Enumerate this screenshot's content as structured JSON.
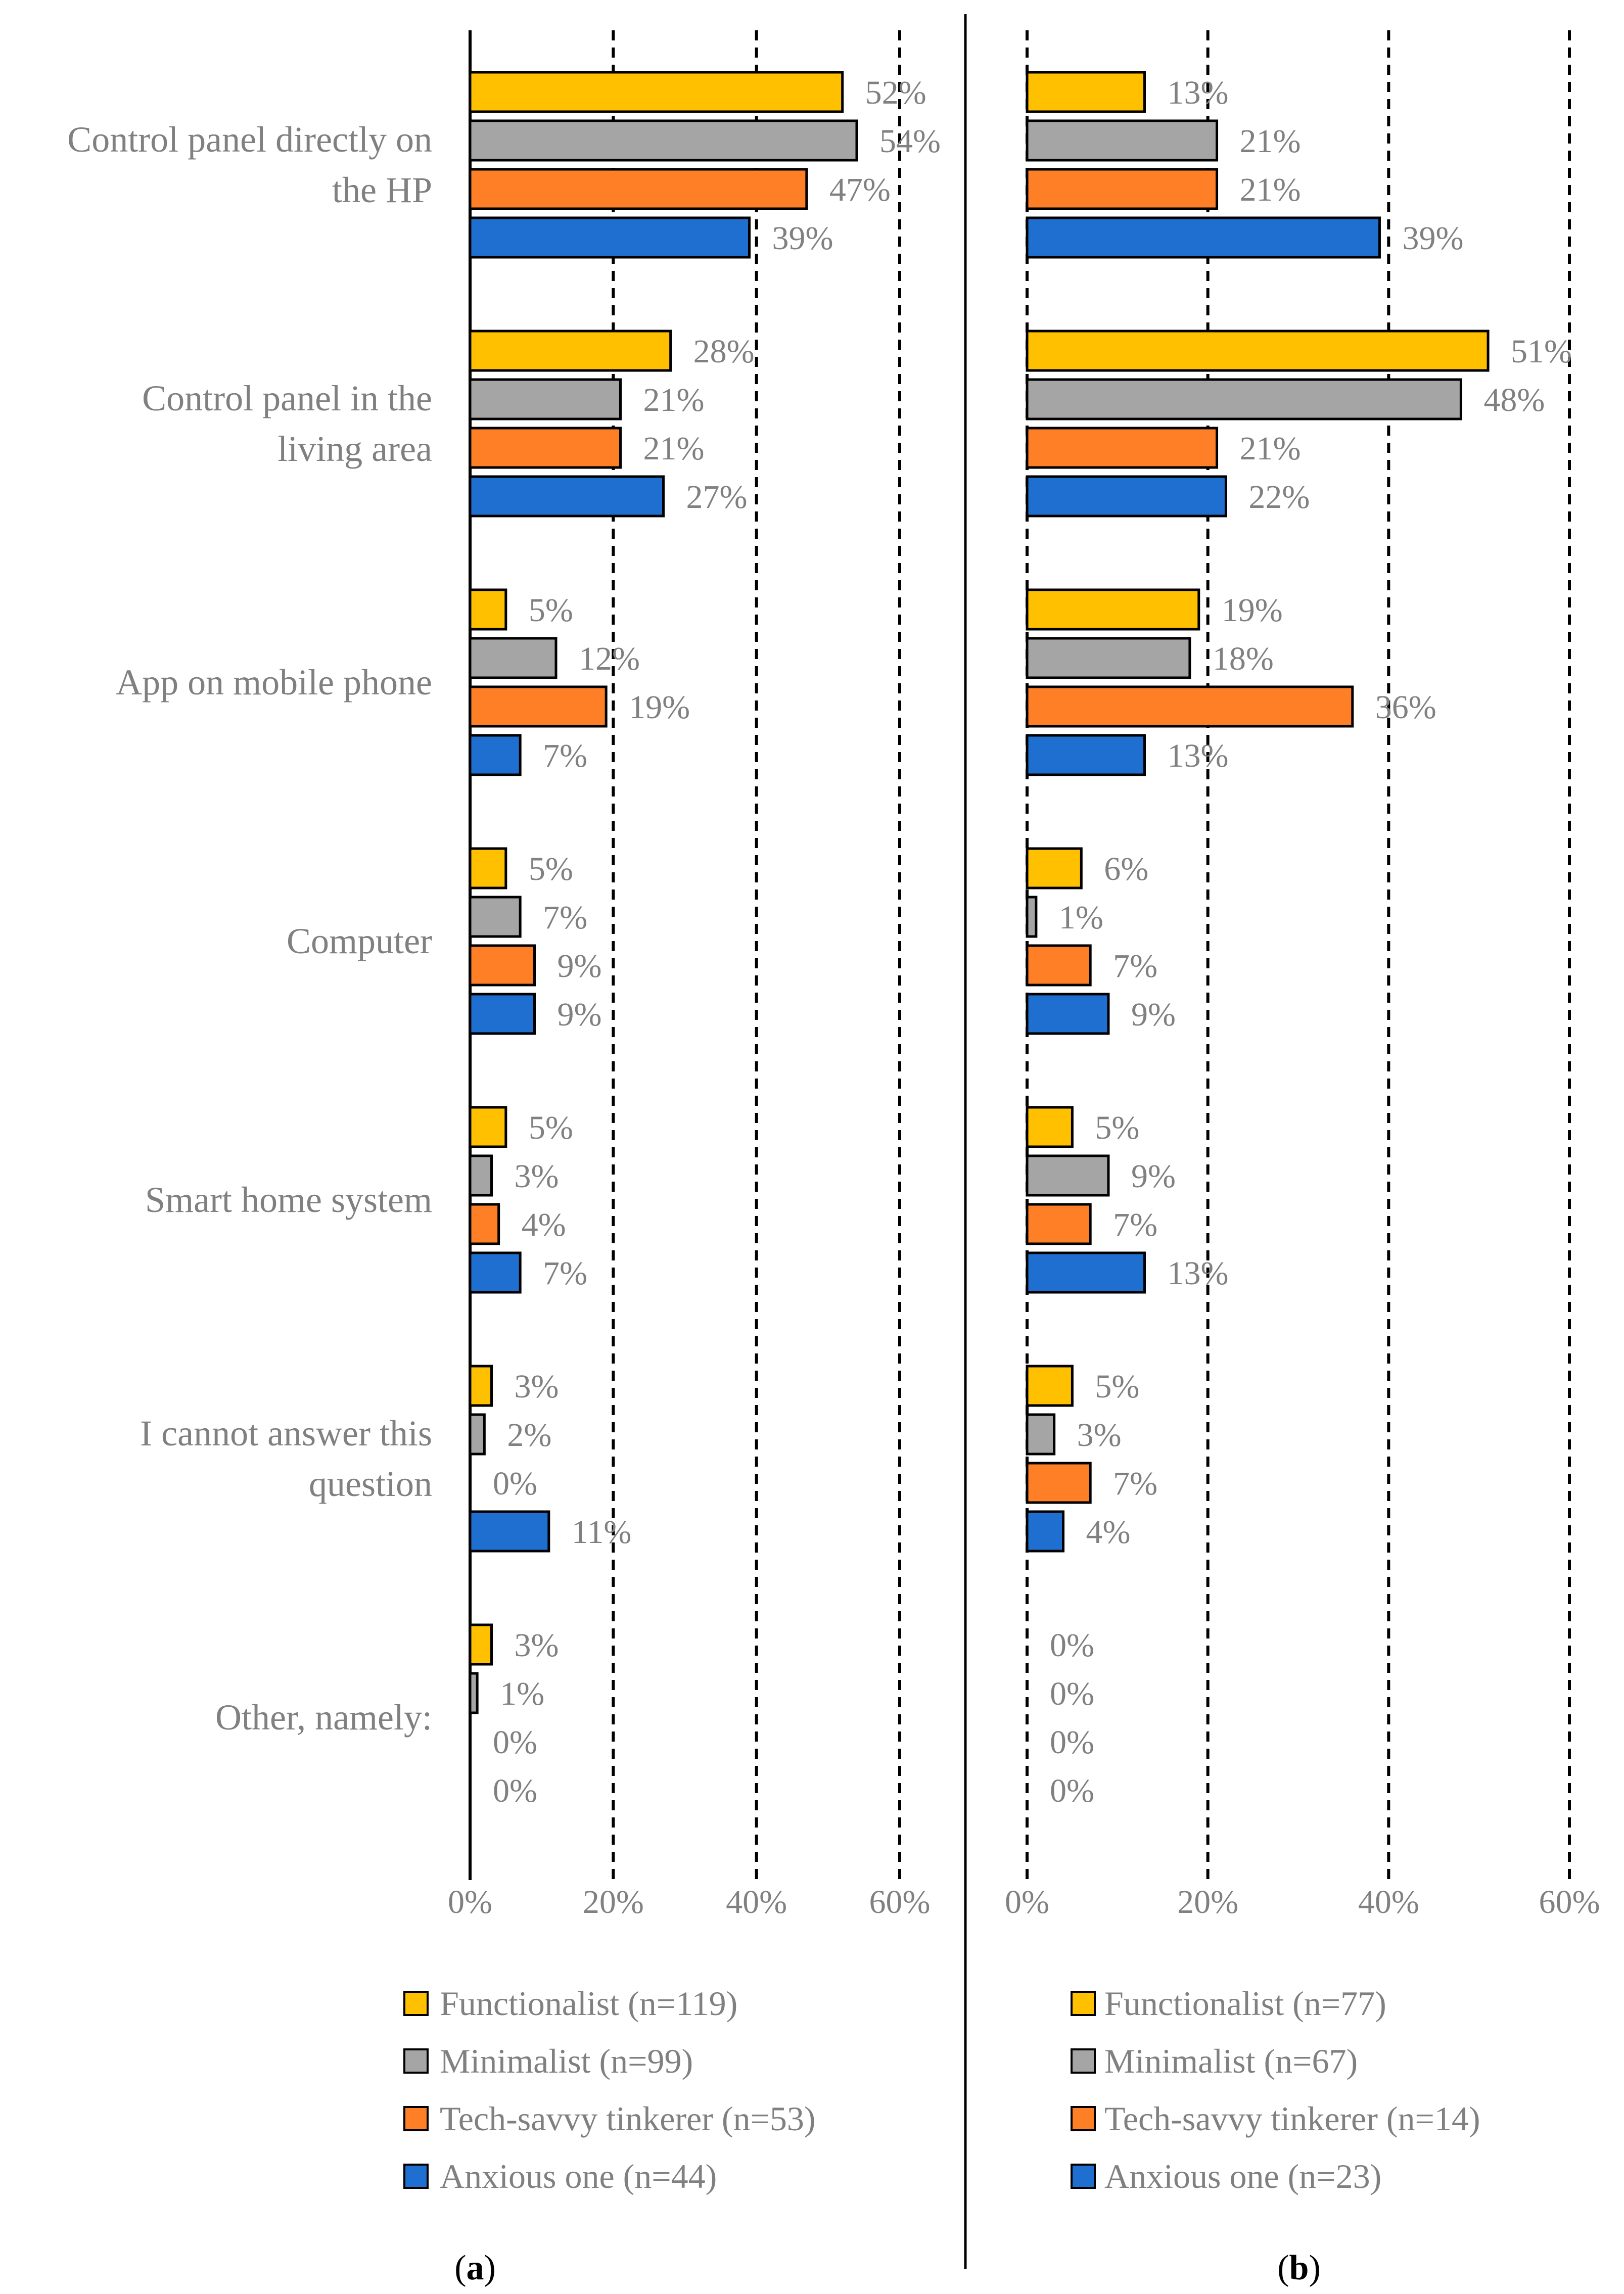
{
  "chart_data": [
    {
      "type": "bar",
      "orientation": "horizontal",
      "panel_label": "a",
      "categories": [
        "Control panel directly on the HP",
        "Control panel in the living area",
        "App on mobile phone",
        "Computer",
        "Smart home system",
        "I cannot answer this question",
        "Other, namely:"
      ],
      "category_lines": [
        [
          "Control panel directly on",
          "the HP"
        ],
        [
          "Control panel in the",
          "living area"
        ],
        [
          "App on mobile phone"
        ],
        [
          "Computer"
        ],
        [
          "Smart home system"
        ],
        [
          "I cannot answer this",
          "question"
        ],
        [
          "Other, namely:"
        ]
      ],
      "series": [
        {
          "name": "Functionalist (n=119)",
          "color": "#FFC000",
          "values": [
            52,
            28,
            5,
            5,
            5,
            3,
            3
          ],
          "labels": [
            "52%",
            "28%",
            "5%",
            "5%",
            "5%",
            "3%",
            "3%"
          ]
        },
        {
          "name": "Minimalist (n=99)",
          "color": "#A5A5A5",
          "values": [
            54,
            21,
            12,
            7,
            3,
            2,
            1
          ],
          "labels": [
            "54%",
            "21%",
            "12%",
            "7%",
            "3%",
            "2%",
            "1%"
          ]
        },
        {
          "name": "Tech-savvy tinkerer (n=53)",
          "color": "#FF7F27",
          "values": [
            47,
            21,
            19,
            9,
            4,
            0,
            0
          ],
          "labels": [
            "47%",
            "21%",
            "19%",
            "9%",
            "4%",
            "0%",
            "0%"
          ]
        },
        {
          "name": "Anxious one (n=44)",
          "color": "#1F6FD0",
          "values": [
            39,
            27,
            7,
            9,
            7,
            11,
            0
          ],
          "labels": [
            "39%",
            "27%",
            "7%",
            "9%",
            "7%",
            "11%",
            "0%"
          ]
        }
      ],
      "xlim": [
        0,
        60
      ],
      "xticks": [
        "0%",
        "20%",
        "40%",
        "60%"
      ],
      "grid": "dashed vertical at 20%, 40%, 60%",
      "legend": "bottom"
    },
    {
      "type": "bar",
      "orientation": "horizontal",
      "panel_label": "b",
      "categories": [
        "Control panel directly on the HP",
        "Control panel in the living area",
        "App on mobile phone",
        "Computer",
        "Smart home system",
        "I cannot answer this question",
        "Other, namely:"
      ],
      "series": [
        {
          "name": "Functionalist (n=77)",
          "color": "#FFC000",
          "values": [
            13,
            51,
            19,
            6,
            5,
            5,
            0
          ],
          "labels": [
            "13%",
            "51%",
            "19%",
            "6%",
            "5%",
            "5%",
            "0%"
          ]
        },
        {
          "name": "Minimalist (n=67)",
          "color": "#A5A5A5",
          "values": [
            21,
            48,
            18,
            1,
            9,
            3,
            0
          ],
          "labels": [
            "21%",
            "48%",
            "18%",
            "1%",
            "9%",
            "3%",
            "0%"
          ]
        },
        {
          "name": "Tech-savvy tinkerer (n=14)",
          "color": "#FF7F27",
          "values": [
            21,
            21,
            36,
            7,
            7,
            7,
            0
          ],
          "labels": [
            "21%",
            "21%",
            "36%",
            "7%",
            "7%",
            "7%",
            "0%"
          ]
        },
        {
          "name": "Anxious one (n=23)",
          "color": "#1F6FD0",
          "values": [
            39,
            22,
            13,
            9,
            13,
            4,
            0
          ],
          "labels": [
            "39%",
            "22%",
            "13%",
            "9%",
            "13%",
            "4%",
            "0%"
          ]
        }
      ],
      "xlim": [
        0,
        60
      ],
      "xticks": [
        "0%",
        "20%",
        "40%",
        "60%"
      ],
      "grid": "dashed vertical at 0%, 20%, 40%, 60%",
      "legend": "bottom"
    }
  ]
}
